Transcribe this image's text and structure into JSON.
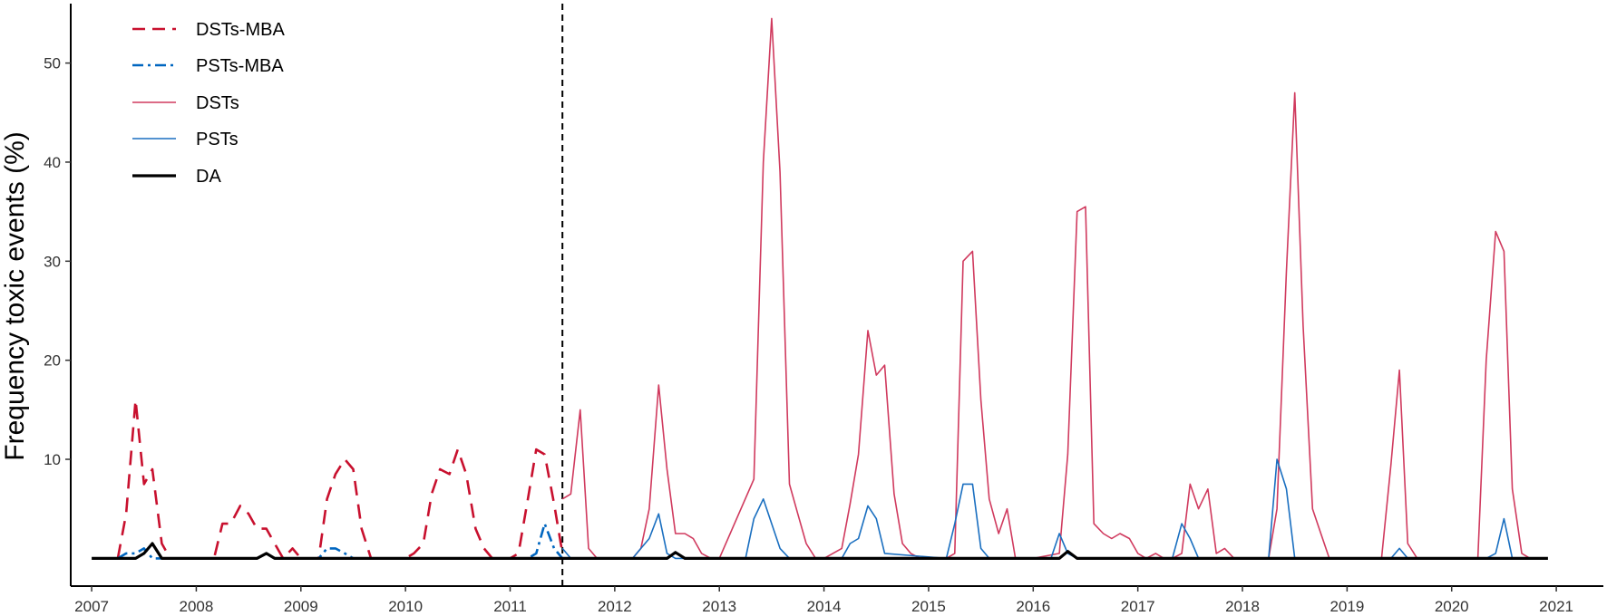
{
  "chart_data": {
    "type": "line",
    "ylabel": "Frequency toxic events (%)",
    "xlabel": "",
    "xlim": [
      2006.8,
      2021.45
    ],
    "ylim": [
      -2.8,
      56
    ],
    "x_ticks": [
      2007,
      2008,
      2009,
      2010,
      2011,
      2012,
      2013,
      2014,
      2015,
      2016,
      2017,
      2018,
      2019,
      2020,
      2021
    ],
    "x_tick_labels": [
      "2007",
      "2008",
      "2009",
      "2010",
      "2011",
      "2012",
      "2013",
      "2014",
      "2015",
      "2016",
      "2017",
      "2018",
      "2019",
      "2020",
      "2021"
    ],
    "y_ticks": [
      10,
      20,
      30,
      40,
      50
    ],
    "y_tick_labels": [
      "10",
      "20",
      "30",
      "40",
      "50"
    ],
    "vline": {
      "x": 2011.5,
      "style": "dashed"
    },
    "legend_position": "top-left",
    "grid": false,
    "series": [
      {
        "name": "DSTs-MBA",
        "color": "#c8102e",
        "style": "dashed",
        "x": [
          2007.25,
          2007.33,
          2007.42,
          2007.5,
          2007.58,
          2007.67,
          2007.75,
          2007.83,
          2008.17,
          2008.25,
          2008.33,
          2008.42,
          2008.5,
          2008.58,
          2008.67,
          2008.75,
          2008.83,
          2008.92,
          2009.0,
          2009.17,
          2009.25,
          2009.33,
          2009.42,
          2009.5,
          2009.58,
          2009.67,
          2009.75,
          2010.0,
          2010.08,
          2010.17,
          2010.25,
          2010.33,
          2010.42,
          2010.5,
          2010.58,
          2010.67,
          2010.75,
          2010.83,
          2010.92,
          2011.0,
          2011.08,
          2011.17,
          2011.25,
          2011.33,
          2011.42,
          2011.5
        ],
        "values": [
          0,
          4.5,
          16,
          7.5,
          9,
          1.5,
          0,
          0,
          0,
          3.5,
          3.5,
          5.3,
          4.5,
          3,
          3,
          1.5,
          0,
          1,
          0,
          0,
          6,
          8.5,
          10,
          9,
          3,
          0,
          0,
          0,
          0.5,
          1.5,
          6.5,
          9,
          8.5,
          11,
          8.5,
          3,
          1,
          0,
          0,
          0,
          0.5,
          6,
          11,
          10.5,
          5.5,
          0.5
        ]
      },
      {
        "name": "PSTs-MBA",
        "color": "#0066c0",
        "style": "dotdash",
        "x": [
          2007.25,
          2007.33,
          2007.42,
          2007.5,
          2007.58,
          2007.67,
          2007.75,
          2008.58,
          2008.67,
          2008.75,
          2009.17,
          2009.25,
          2009.33,
          2009.42,
          2009.5,
          2011.17,
          2011.25,
          2011.33,
          2011.42,
          2011.5
        ],
        "values": [
          0,
          0.5,
          0.5,
          1,
          0,
          0,
          0,
          0,
          0.5,
          0,
          0,
          1,
          1,
          0.5,
          0,
          0,
          0.5,
          3.5,
          1,
          0
        ]
      },
      {
        "name": "DSTs",
        "color": "#d03a5e",
        "style": "solid",
        "x": [
          2011.5,
          2011.58,
          2011.67,
          2011.75,
          2011.83,
          2012.17,
          2012.25,
          2012.33,
          2012.42,
          2012.5,
          2012.58,
          2012.67,
          2012.75,
          2012.83,
          2012.92,
          2013.0,
          2013.33,
          2013.42,
          2013.5,
          2013.58,
          2013.67,
          2013.75,
          2013.83,
          2013.92,
          2014.0,
          2014.17,
          2014.25,
          2014.33,
          2014.42,
          2014.5,
          2014.58,
          2014.67,
          2014.75,
          2014.83,
          2014.92,
          2015.0,
          2015.17,
          2015.25,
          2015.33,
          2015.42,
          2015.5,
          2015.58,
          2015.67,
          2015.75,
          2015.83,
          2015.92,
          2016.0,
          2016.25,
          2016.33,
          2016.42,
          2016.5,
          2016.58,
          2016.67,
          2016.75,
          2016.83,
          2016.92,
          2017.0,
          2017.08,
          2017.17,
          2017.25,
          2017.33,
          2017.42,
          2017.5,
          2017.58,
          2017.67,
          2017.75,
          2017.83,
          2017.92,
          2018.25,
          2018.33,
          2018.42,
          2018.5,
          2018.58,
          2018.67,
          2018.75,
          2018.83,
          2018.92,
          2019.33,
          2019.42,
          2019.5,
          2019.58,
          2019.67,
          2019.75,
          2020.25,
          2020.33,
          2020.42,
          2020.5,
          2020.58,
          2020.67,
          2020.75,
          2020.83
        ],
        "values": [
          6,
          6.5,
          15,
          1,
          0,
          0,
          1,
          5,
          17.5,
          9,
          2.5,
          2.5,
          2,
          0.5,
          0,
          0,
          8,
          40,
          54.5,
          39,
          7.5,
          4.5,
          1.5,
          0,
          0,
          1,
          5.5,
          10.5,
          23,
          18.5,
          19.5,
          6.5,
          1.5,
          0.5,
          0,
          0,
          0,
          0.5,
          30,
          31,
          16,
          6,
          2.5,
          5,
          0,
          0,
          0,
          0.5,
          10.5,
          35,
          35.5,
          3.5,
          2.5,
          2,
          2.5,
          2,
          0.5,
          0,
          0.5,
          0,
          0,
          0.5,
          7.5,
          5,
          7,
          0.5,
          1,
          0,
          0,
          5,
          29,
          47,
          23.5,
          5,
          2.5,
          0,
          0,
          0,
          9.5,
          19,
          1.5,
          0,
          0,
          0,
          20,
          33,
          31,
          7,
          0.5,
          0,
          0
        ]
      },
      {
        "name": "PSTs",
        "color": "#1a6fc0",
        "style": "solid",
        "x": [
          2011.5,
          2011.58,
          2012.17,
          2012.25,
          2012.33,
          2012.42,
          2012.5,
          2012.58,
          2013.25,
          2013.33,
          2013.42,
          2013.5,
          2013.58,
          2013.67,
          2014.17,
          2014.25,
          2014.33,
          2014.42,
          2014.5,
          2014.58,
          2015.17,
          2015.25,
          2015.33,
          2015.42,
          2015.5,
          2015.58,
          2016.17,
          2016.25,
          2016.33,
          2016.42,
          2017.33,
          2017.42,
          2017.5,
          2017.58,
          2018.25,
          2018.33,
          2018.42,
          2018.5,
          2019.42,
          2019.5,
          2019.58,
          2020.33,
          2020.42,
          2020.5,
          2020.58
        ],
        "values": [
          1,
          0,
          0,
          1,
          2,
          4.5,
          0.5,
          0,
          0,
          4,
          6,
          3.5,
          1,
          0,
          0,
          1.5,
          2,
          5.3,
          4,
          0.5,
          0,
          3.5,
          7.5,
          7.5,
          1,
          0,
          0,
          2.5,
          0.5,
          0,
          0,
          3.5,
          2,
          0,
          0,
          10,
          7,
          0,
          0,
          1,
          0,
          0,
          0.5,
          4,
          0
        ]
      },
      {
        "name": "DA",
        "color": "#000000",
        "style": "solid-thick",
        "x": [
          2007.0,
          2007.42,
          2007.5,
          2007.58,
          2007.67,
          2007.75,
          2008.58,
          2008.67,
          2008.75,
          2012.5,
          2012.58,
          2012.67,
          2016.25,
          2016.33,
          2016.42,
          2020.92
        ],
        "values": [
          0,
          0,
          0.5,
          1.5,
          0,
          0,
          0,
          0.5,
          0,
          0,
          0.6,
          0,
          0,
          0.7,
          0,
          0
        ]
      }
    ]
  }
}
